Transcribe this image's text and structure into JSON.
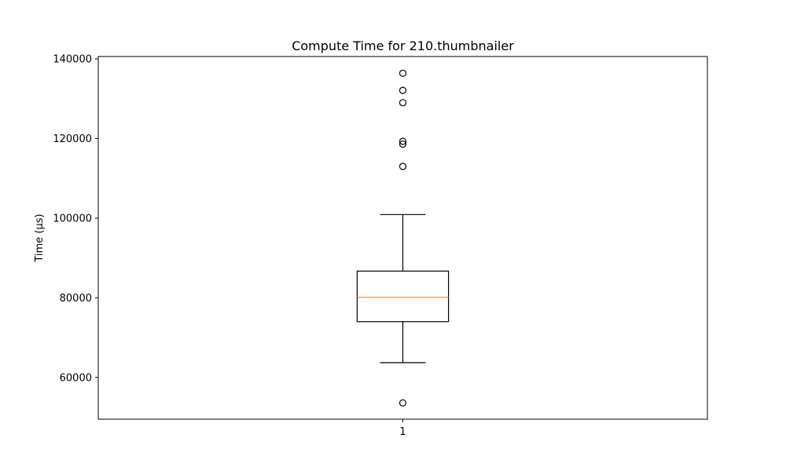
{
  "chart_data": {
    "type": "box",
    "title": "Compute Time for 210.thumbnailer",
    "xlabel": "",
    "ylabel": "Time (µs)",
    "categories": [
      "1"
    ],
    "ylim": [
      49500,
      140600
    ],
    "yticks": [
      60000,
      80000,
      100000,
      120000,
      140000
    ],
    "yticklabels": [
      "60000",
      "80000",
      "100000",
      "120000",
      "140000"
    ],
    "grid": false,
    "boxes": [
      {
        "category": "1",
        "whisker_low": 63700,
        "q1": 74000,
        "median": 80100,
        "q3": 86700,
        "whisker_high": 100900,
        "outliers": [
          53600,
          113000,
          118600,
          119300,
          129000,
          132100,
          136400
        ]
      }
    ],
    "colors": {
      "box": "#000000",
      "median": "#ff7f0e",
      "outlier": "#000000"
    }
  }
}
